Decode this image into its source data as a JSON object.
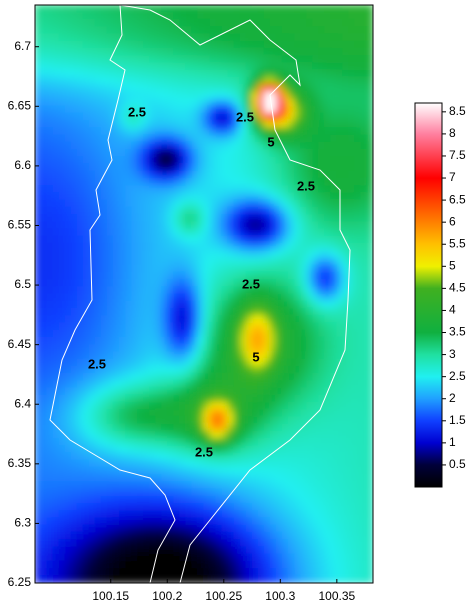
{
  "chart_data": {
    "type": "contour",
    "xlim": [
      100.083,
      100.382
    ],
    "ylim": [
      6.25,
      6.735
    ],
    "xticks": [
      100.15,
      100.2,
      100.25,
      100.3,
      100.35
    ],
    "yticks": [
      6.25,
      6.3,
      6.35,
      6.4,
      6.45,
      6.5,
      6.55,
      6.6,
      6.65,
      6.7
    ],
    "colorbar_lim": [
      0,
      8.7
    ],
    "colorbar_ticks": [
      0.5,
      1,
      1.5,
      2,
      2.5,
      3,
      3.5,
      4,
      4.5,
      5,
      5.5,
      6,
      6.5,
      7,
      7.5,
      8,
      8.5
    ],
    "annotations": [
      "2.5",
      "2.5",
      "2.5",
      "2.5",
      "2.5",
      "2.5",
      "5",
      "5"
    ]
  }
}
